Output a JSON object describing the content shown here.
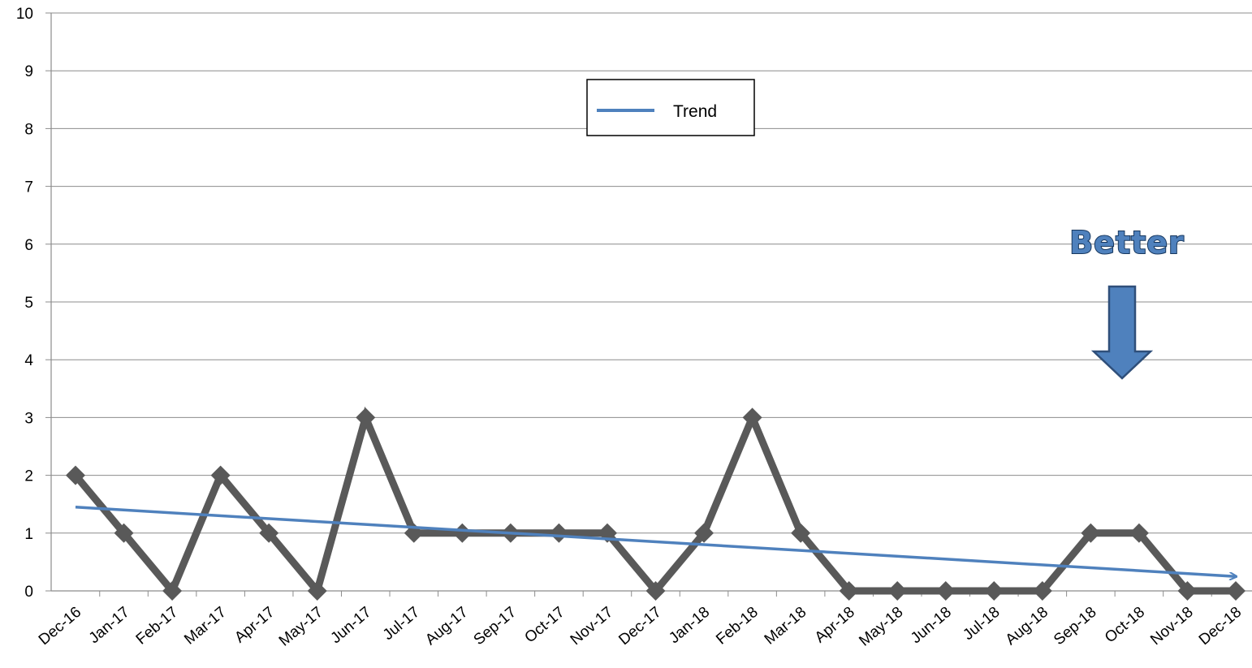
{
  "chart_data": {
    "type": "line",
    "title": "",
    "xlabel": "",
    "ylabel": "",
    "ylim": [
      0,
      10
    ],
    "yticks": [
      0,
      1,
      2,
      3,
      4,
      5,
      6,
      7,
      8,
      9,
      10
    ],
    "grid": "horizontal",
    "categories": [
      "Dec-16",
      "Jan-17",
      "Feb-17",
      "Mar-17",
      "Apr-17",
      "May-17",
      "Jun-17",
      "Jul-17",
      "Aug-17",
      "Sep-17",
      "Oct-17",
      "Nov-17",
      "Dec-17",
      "Jan-18",
      "Feb-18",
      "Mar-18",
      "Apr-18",
      "May-18",
      "Jun-18",
      "Jul-18",
      "Aug-18",
      "Sep-18",
      "Oct-18",
      "Nov-18",
      "Dec-18"
    ],
    "series": [
      {
        "values": [
          2,
          1,
          0,
          2,
          1,
          0,
          3,
          1,
          1,
          1,
          1,
          1,
          0,
          1,
          3,
          1,
          0,
          0,
          0,
          0,
          0,
          1,
          1,
          0,
          0
        ],
        "color": "#595959",
        "marker": "diamond"
      }
    ],
    "trend": {
      "name": "Trend",
      "start_value": 1.45,
      "end_value": 0.25,
      "color": "#4f81bd"
    },
    "legend": {
      "placement": "top-center",
      "entries": [
        "Trend"
      ]
    },
    "annotations": [
      {
        "text": "Better",
        "arrow": "down",
        "color": "#4f81bd"
      }
    ]
  }
}
